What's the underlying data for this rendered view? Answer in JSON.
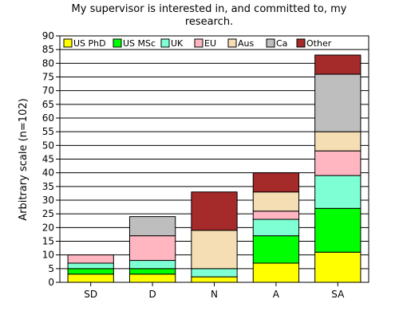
{
  "chart_data": {
    "type": "bar",
    "stacked": true,
    "title_lines": [
      "My supervisor is interested in, and committed to, my",
      "research."
    ],
    "xlabel": "",
    "ylabel": "Arbitrary scale (n=102)",
    "ylim": [
      0,
      90
    ],
    "yticks": [
      0,
      5,
      10,
      15,
      20,
      25,
      30,
      35,
      40,
      45,
      50,
      55,
      60,
      65,
      70,
      75,
      80,
      85,
      90
    ],
    "grid": true,
    "legend_position": "top",
    "categories": [
      "SD",
      "D",
      "N",
      "A",
      "SA"
    ],
    "series": [
      {
        "name": "US PhD",
        "color": "#ffff00",
        "values": [
          3,
          3,
          2,
          7,
          11
        ]
      },
      {
        "name": "US MSc",
        "color": "#00ff00",
        "values": [
          2,
          2,
          0,
          10,
          16
        ]
      },
      {
        "name": "UK",
        "color": "#7fffd4",
        "values": [
          2,
          3,
          3,
          6,
          12
        ]
      },
      {
        "name": "EU",
        "color": "#ffb6c1",
        "values": [
          3,
          9,
          0,
          3,
          9
        ]
      },
      {
        "name": "Aus",
        "color": "#f5deb3",
        "values": [
          0,
          0,
          14,
          7,
          7
        ]
      },
      {
        "name": "Ca",
        "color": "#bebebe",
        "values": [
          0,
          7,
          0,
          0,
          21
        ]
      },
      {
        "name": "Other",
        "color": "#a52a2a",
        "values": [
          0,
          0,
          14,
          7,
          7
        ]
      }
    ]
  }
}
